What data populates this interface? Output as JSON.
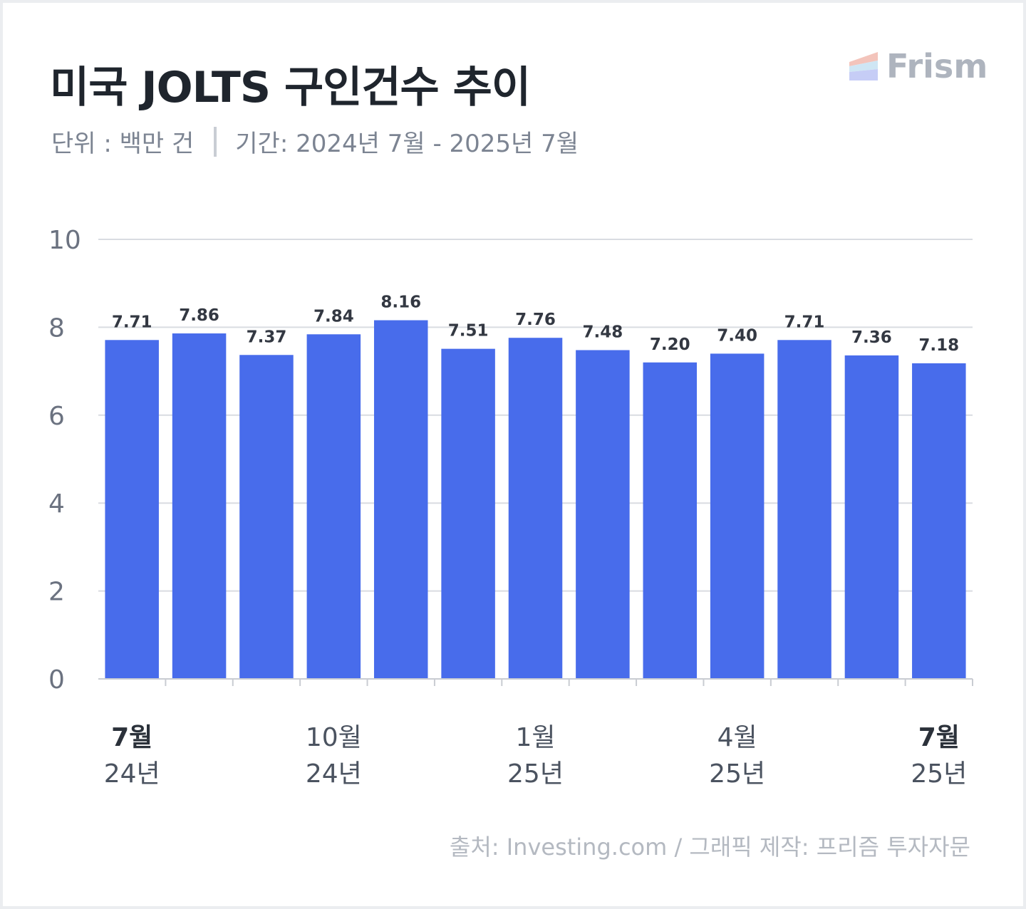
{
  "header": {
    "title": "미국 JOLTS 구인건수 추이",
    "unit": "단위 : 백만 건",
    "period": "기간: 2024년 7월 - 2025년 7월"
  },
  "logo": {
    "text": "Frism"
  },
  "footer": {
    "source": "출처: Investing.com / 그래픽 제작: 프리즘 투자자문"
  },
  "colors": {
    "bar": "#486ceb",
    "grid": "#d9dce1",
    "background": "#ffffff"
  },
  "chart_data": {
    "type": "bar",
    "title": "미국 JOLTS 구인건수 추이",
    "ylabel": "",
    "xlabel": "",
    "ylim": [
      0,
      10
    ],
    "yticks": [
      "0",
      "2",
      "4",
      "6",
      "8",
      "10"
    ],
    "categories": [
      "2024-07",
      "2024-08",
      "2024-09",
      "2024-10",
      "2024-11",
      "2024-12",
      "2025-01",
      "2025-02",
      "2025-03",
      "2025-04",
      "2025-05",
      "2025-06",
      "2025-07"
    ],
    "values": [
      7.71,
      7.86,
      7.37,
      7.84,
      8.16,
      7.51,
      7.76,
      7.48,
      7.2,
      7.4,
      7.71,
      7.36,
      7.18
    ],
    "value_labels": [
      "7.71",
      "7.86",
      "7.37",
      "7.84",
      "8.16",
      "7.51",
      "7.76",
      "7.48",
      "7.20",
      "7.40",
      "7.71",
      "7.36",
      "7.18"
    ],
    "x_labels": [
      {
        "index": 0,
        "month": "7월",
        "year": "24년",
        "bold": true
      },
      {
        "index": 3,
        "month": "10월",
        "year": "24년",
        "bold": false
      },
      {
        "index": 6,
        "month": "1월",
        "year": "25년",
        "bold": false
      },
      {
        "index": 9,
        "month": "4월",
        "year": "25년",
        "bold": false
      },
      {
        "index": 12,
        "month": "7월",
        "year": "25년",
        "bold": true
      }
    ],
    "grid": true,
    "legend": "none"
  }
}
